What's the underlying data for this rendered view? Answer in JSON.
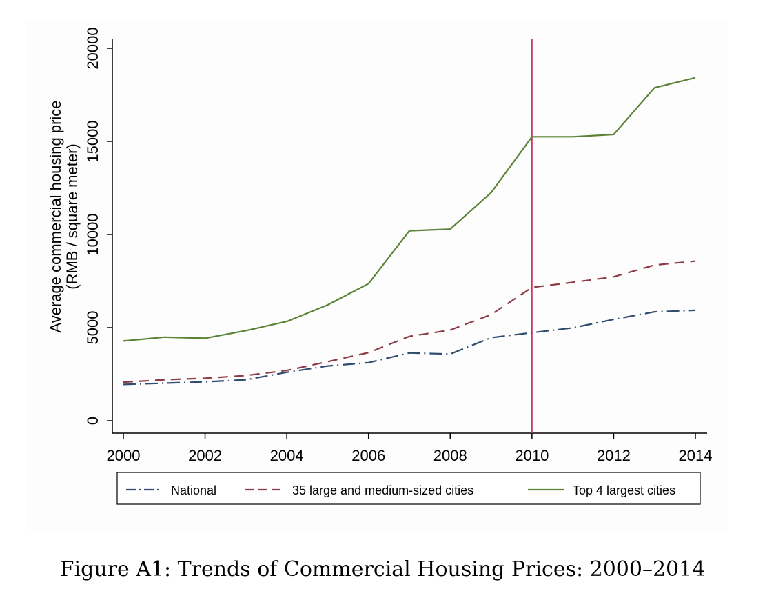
{
  "caption": "Figure A1: Trends of Commercial Housing Prices: 2000–2014",
  "chart_data": {
    "type": "line",
    "ylabel": [
      "Average commercial housing price",
      "(RMB / square meter)"
    ],
    "xlabel": "",
    "xlim": [
      2000,
      2014
    ],
    "ylim": [
      0,
      20000
    ],
    "x_ticks": [
      2000,
      2002,
      2004,
      2006,
      2008,
      2010,
      2012,
      2014
    ],
    "y_ticks": [
      0,
      5000,
      10000,
      15000,
      20000
    ],
    "grid": false,
    "legend_position": "bottom",
    "x": [
      2000,
      2001,
      2002,
      2003,
      2004,
      2005,
      2006,
      2007,
      2008,
      2009,
      2010,
      2011,
      2012,
      2013,
      2014
    ],
    "series": [
      {
        "name": "National",
        "style": "dash-dot",
        "color": "#2f4b6e",
        "values": [
          1950,
          2020,
          2090,
          2200,
          2600,
          2940,
          3120,
          3640,
          3580,
          4460,
          4730,
          4990,
          5440,
          5850,
          5930
        ]
      },
      {
        "name": "35 large and medium-sized cities",
        "style": "dash",
        "color": "#8c3b46",
        "values": [
          2070,
          2200,
          2280,
          2430,
          2700,
          3170,
          3660,
          4530,
          4870,
          5700,
          7160,
          7430,
          7730,
          8360,
          8570
        ]
      },
      {
        "name": "Top 4 largest cities",
        "style": "solid",
        "color": "#5a8234",
        "values": [
          4280,
          4490,
          4430,
          4840,
          5330,
          6220,
          7360,
          10200,
          10290,
          12250,
          15250,
          15250,
          15370,
          17880,
          18420
        ]
      }
    ],
    "vertical_line": {
      "x": 2010,
      "color": "#cc3366"
    }
  }
}
